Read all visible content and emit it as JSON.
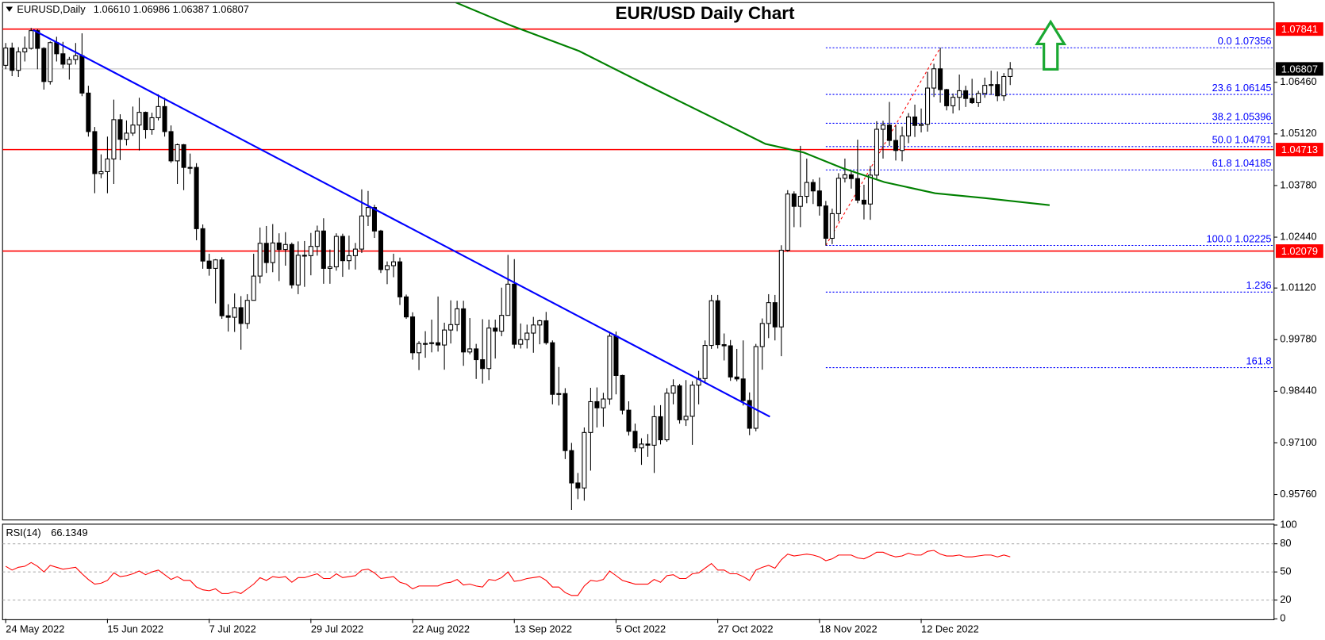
{
  "chart_data": {
    "type": "candlestick",
    "title": "EUR/USD Daily Chart",
    "symbol": "EURUSD,Daily",
    "quote": "1.06610 1.06986 1.06387 1.06807",
    "up_color": "#ffffff",
    "down_color": "#000000",
    "candles": [
      [
        1.069,
        1.0748,
        1.068,
        1.0735
      ],
      [
        1.0735,
        1.0749,
        1.0662,
        1.0677
      ],
      [
        1.0677,
        1.0737,
        1.066,
        1.0725
      ],
      [
        1.0725,
        1.0765,
        1.07,
        1.0734
      ],
      [
        1.0734,
        1.0787,
        1.0731,
        1.078
      ],
      [
        1.078,
        1.0784,
        1.068,
        1.0734
      ],
      [
        1.0734,
        1.0737,
        1.0627,
        1.0648
      ],
      [
        1.0648,
        1.0752,
        1.064,
        1.0749
      ],
      [
        1.0749,
        1.0764,
        1.07,
        1.072
      ],
      [
        1.072,
        1.0751,
        1.0682,
        1.0693
      ],
      [
        1.0693,
        1.0712,
        1.0653,
        1.0705
      ],
      [
        1.0705,
        1.0748,
        1.0692,
        1.0715
      ],
      [
        1.0715,
        1.0773,
        1.061,
        1.0618
      ],
      [
        1.0618,
        1.0637,
        1.0505,
        1.0518
      ],
      [
        1.0518,
        1.053,
        1.0358,
        1.0409
      ],
      [
        1.0409,
        1.0459,
        1.0397,
        1.0414
      ],
      [
        1.0414,
        1.0505,
        1.0358,
        1.0447
      ],
      [
        1.0447,
        1.0601,
        1.0382,
        1.0549
      ],
      [
        1.0549,
        1.0563,
        1.0444,
        1.0498
      ],
      [
        1.0498,
        1.0547,
        1.0482,
        1.0514
      ],
      [
        1.0514,
        1.0583,
        1.0507,
        1.0535
      ],
      [
        1.0535,
        1.0606,
        1.0469,
        1.0568
      ],
      [
        1.0568,
        1.057,
        1.05,
        1.0523
      ],
      [
        1.0523,
        1.0567,
        1.051,
        1.0554
      ],
      [
        1.0554,
        1.0615,
        1.0547,
        1.0583
      ],
      [
        1.0583,
        1.0606,
        1.0505,
        1.0518
      ],
      [
        1.0518,
        1.0534,
        1.0437,
        1.0442
      ],
      [
        1.0442,
        1.0487,
        1.0382,
        1.0484
      ],
      [
        1.0484,
        1.0486,
        1.0366,
        1.0425
      ],
      [
        1.0425,
        1.0461,
        1.0408,
        1.0425
      ],
      [
        1.0425,
        1.0436,
        1.0236,
        1.0266
      ],
      [
        1.0266,
        1.0277,
        1.0162,
        1.0182
      ],
      [
        1.0182,
        1.0201,
        1.0144,
        1.0163
      ],
      [
        1.0163,
        1.0187,
        1.0072,
        1.0185
      ],
      [
        1.0185,
        1.0192,
        1.0032,
        1.004
      ],
      [
        1.004,
        1.007,
        0.9999,
        1.0036
      ],
      [
        1.0036,
        1.0098,
        0.9998,
        1.0061
      ],
      [
        1.0061,
        1.0091,
        0.9952,
        1.002
      ],
      [
        1.002,
        1.0096,
        1.0006,
        1.008
      ],
      [
        1.008,
        1.0201,
        1.008,
        1.0143
      ],
      [
        1.0143,
        1.0269,
        1.0124,
        1.0228
      ],
      [
        1.0228,
        1.0273,
        1.0151,
        1.0178
      ],
      [
        1.0178,
        1.0278,
        1.0153,
        1.0229
      ],
      [
        1.0229,
        1.0254,
        1.013,
        1.0212
      ],
      [
        1.0212,
        1.0257,
        1.017,
        1.0225
      ],
      [
        1.0225,
        1.023,
        1.0111,
        1.012
      ],
      [
        1.012,
        1.0233,
        1.0096,
        1.0197
      ],
      [
        1.0197,
        1.0234,
        1.0115,
        1.0196
      ],
      [
        1.0196,
        1.0255,
        1.0145,
        1.022
      ],
      [
        1.022,
        1.0274,
        1.0196,
        1.026
      ],
      [
        1.026,
        1.0293,
        1.0123,
        1.0163
      ],
      [
        1.0163,
        1.0212,
        1.0123,
        1.0167
      ],
      [
        1.0167,
        1.0254,
        1.0157,
        1.0246
      ],
      [
        1.0246,
        1.0253,
        1.0141,
        1.0183
      ],
      [
        1.0183,
        1.0248,
        1.016,
        1.0196
      ],
      [
        1.0196,
        1.0229,
        1.016,
        1.0213
      ],
      [
        1.0213,
        1.0368,
        1.0203,
        1.0299
      ],
      [
        1.0299,
        1.0364,
        1.0273,
        1.0321
      ],
      [
        1.0321,
        1.0328,
        1.0242,
        1.026
      ],
      [
        1.026,
        1.0263,
        1.0151,
        1.016
      ],
      [
        1.016,
        1.0181,
        1.0122,
        1.017
      ],
      [
        1.017,
        1.0201,
        1.014,
        1.018
      ],
      [
        1.018,
        1.0191,
        1.0068,
        1.0089
      ],
      [
        1.0089,
        1.0095,
        1.0032,
        1.0037
      ],
      [
        1.0037,
        1.0049,
        0.9926,
        0.9944
      ],
      [
        0.9944,
        0.9974,
        0.9899,
        0.9968
      ],
      [
        0.9968,
        1.0,
        0.9931,
        0.9968
      ],
      [
        0.9968,
        1.003,
        0.9945,
        0.997
      ],
      [
        0.997,
        1.009,
        0.9947,
        0.9964
      ],
      [
        0.9964,
        1.0022,
        0.99,
        1.0003
      ],
      [
        1.0003,
        1.008,
        0.9968,
        1.0017
      ],
      [
        1.0017,
        1.0079,
        1.0,
        1.0058
      ],
      [
        1.0058,
        1.0079,
        0.991,
        0.9946
      ],
      [
        0.9946,
        1.0034,
        0.994,
        0.9954
      ],
      [
        0.9954,
        0.9967,
        0.9876,
        0.9926
      ],
      [
        0.9926,
        1.0031,
        0.9864,
        0.9903
      ],
      [
        0.9903,
        1.003,
        0.9873,
        1.0008
      ],
      [
        1.0008,
        1.003,
        0.9929,
        1.0
      ],
      [
        1.0,
        1.0113,
        0.9987,
        1.0041
      ],
      [
        1.0041,
        1.0198,
        1.0042,
        1.0122
      ],
      [
        1.0122,
        1.0187,
        0.9955,
        0.9966
      ],
      [
        0.9966,
        1.002,
        0.9955,
        0.9978
      ],
      [
        0.9978,
        1.0017,
        0.9955,
        0.9995
      ],
      [
        0.9995,
        1.0037,
        0.9944,
        1.0016
      ],
      [
        1.0016,
        1.003,
        0.9966,
        1.0027
      ],
      [
        1.0027,
        1.005,
        0.9965,
        0.997
      ],
      [
        0.997,
        0.9976,
        0.981,
        0.9836
      ],
      [
        0.9836,
        0.9907,
        0.9807,
        0.9838
      ],
      [
        0.9838,
        0.9852,
        0.9668,
        0.969
      ],
      [
        0.969,
        0.971,
        0.9536,
        0.9606
      ],
      [
        0.9606,
        0.9632,
        0.9564,
        0.9593
      ],
      [
        0.9593,
        0.975,
        0.956,
        0.9737
      ],
      [
        0.9737,
        0.9853,
        0.9638,
        0.9817
      ],
      [
        0.9817,
        0.9854,
        0.975,
        0.9801
      ],
      [
        0.9801,
        0.984,
        0.9752,
        0.9824
      ],
      [
        0.9824,
        0.9999,
        0.9809,
        0.9987
      ],
      [
        0.9987,
        0.9999,
        0.9836,
        0.9885
      ],
      [
        0.9885,
        0.9887,
        0.9784,
        0.9795
      ],
      [
        0.9795,
        0.9818,
        0.9729,
        0.974
      ],
      [
        0.974,
        0.976,
        0.9686,
        0.9697
      ],
      [
        0.9697,
        0.9722,
        0.9653,
        0.9707
      ],
      [
        0.9707,
        0.9733,
        0.9674,
        0.9704
      ],
      [
        0.9704,
        0.9807,
        0.9632,
        0.9778
      ],
      [
        0.9778,
        0.9808,
        0.9706,
        0.9718
      ],
      [
        0.9718,
        0.9852,
        0.9713,
        0.9839
      ],
      [
        0.9839,
        0.9875,
        0.981,
        0.9858
      ],
      [
        0.9858,
        0.9863,
        0.976,
        0.977
      ],
      [
        0.977,
        0.9873,
        0.9754,
        0.9779
      ],
      [
        0.9779,
        0.987,
        0.9705,
        0.986
      ],
      [
        0.986,
        0.9897,
        0.981,
        0.9877
      ],
      [
        0.9877,
        0.9976,
        0.9864,
        0.9963
      ],
      [
        0.9963,
        1.0094,
        0.9954,
        1.0079
      ],
      [
        1.0079,
        1.0094,
        0.9955,
        0.9965
      ],
      [
        0.9965,
        0.9994,
        0.9924,
        0.9962
      ],
      [
        0.9962,
        0.9977,
        0.9871,
        0.9881
      ],
      [
        0.9881,
        0.9954,
        0.987,
        0.9876
      ],
      [
        0.9876,
        0.9976,
        0.9807,
        0.982
      ],
      [
        0.982,
        0.9841,
        0.973,
        0.9748
      ],
      [
        0.9748,
        0.9967,
        0.974,
        0.996
      ],
      [
        0.996,
        1.0033,
        0.99,
        1.002
      ],
      [
        1.002,
        1.0096,
        0.9982,
        1.0074
      ],
      [
        1.0074,
        1.0094,
        0.9976,
        1.0011
      ],
      [
        1.0011,
        1.0223,
        0.9935,
        1.021
      ],
      [
        1.021,
        1.0366,
        1.0206,
        1.0356
      ],
      [
        1.0356,
        1.0363,
        1.027,
        1.0324
      ],
      [
        1.0324,
        1.0481,
        1.027,
        1.035
      ],
      [
        1.035,
        1.0448,
        1.0332,
        1.0386
      ],
      [
        1.0386,
        1.0394,
        1.033,
        1.0364
      ],
      [
        1.0364,
        1.0399,
        1.03,
        1.0325
      ],
      [
        1.0325,
        1.0338,
        1.0222,
        1.0241
      ],
      [
        1.0241,
        1.0318,
        1.0226,
        1.0305
      ],
      [
        1.0305,
        1.041,
        1.0285,
        1.0397
      ],
      [
        1.0397,
        1.0448,
        1.0386,
        1.0406
      ],
      [
        1.0406,
        1.0415,
        1.037,
        1.0396
      ],
      [
        1.0396,
        1.0497,
        1.0332,
        1.034
      ],
      [
        1.034,
        1.038,
        1.029,
        1.033
      ],
      [
        1.033,
        1.0429,
        1.0289,
        1.0405
      ],
      [
        1.0405,
        1.0545,
        1.0394,
        1.0524
      ],
      [
        1.0524,
        1.0546,
        1.0448,
        1.0535
      ],
      [
        1.0535,
        1.0595,
        1.0481,
        1.0495
      ],
      [
        1.0495,
        1.0534,
        1.0443,
        1.0469
      ],
      [
        1.0469,
        1.0531,
        1.0441,
        1.0507
      ],
      [
        1.0507,
        1.0566,
        1.0488,
        1.0556
      ],
      [
        1.0556,
        1.0588,
        1.0504,
        1.0534
      ],
      [
        1.0534,
        1.0578,
        1.0516,
        1.0537
      ],
      [
        1.0537,
        1.0673,
        1.0518,
        1.0631
      ],
      [
        1.0631,
        1.0694,
        1.0608,
        1.0681
      ],
      [
        1.0681,
        1.0736,
        1.0593,
        1.0627
      ],
      [
        1.0627,
        1.0629,
        1.0573,
        1.0585
      ],
      [
        1.0585,
        1.0617,
        1.0565,
        1.0607
      ],
      [
        1.0607,
        1.0666,
        1.0573,
        1.0624
      ],
      [
        1.0624,
        1.0637,
        1.0582,
        1.0604
      ],
      [
        1.0604,
        1.0655,
        1.059,
        1.0593
      ],
      [
        1.0593,
        1.0624,
        1.0582,
        1.0617
      ],
      [
        1.0617,
        1.0658,
        1.0606,
        1.0638
      ],
      [
        1.0638,
        1.0676,
        1.0613,
        1.064
      ],
      [
        1.064,
        1.0674,
        1.0597,
        1.0611
      ],
      [
        1.0611,
        1.067,
        1.0598,
        1.0661
      ],
      [
        1.0661,
        1.06986,
        1.06387,
        1.06807
      ]
    ],
    "xlim": [
      -0.5,
      199.5
    ],
    "xticks": [
      {
        "value": 0,
        "label": "24 May 2022"
      },
      {
        "value": 16,
        "label": "15 Jun 2022"
      },
      {
        "value": 32,
        "label": "7 Jul 2022"
      },
      {
        "value": 48,
        "label": "29 Jul 2022"
      },
      {
        "value": 64,
        "label": "22 Aug 2022"
      },
      {
        "value": 80,
        "label": "13 Sep 2022"
      },
      {
        "value": 96,
        "label": "5 Oct 2022"
      },
      {
        "value": 112,
        "label": "27 Oct 2022"
      },
      {
        "value": 128,
        "label": "18 Nov 2022"
      },
      {
        "value": 144,
        "label": "12 Dec 2022"
      }
    ],
    "ylim": [
      0.951,
      1.0853
    ],
    "yticks": [
      {
        "value": 1.0646,
        "label": "1.06460"
      },
      {
        "value": 1.0512,
        "label": "1.05120"
      },
      {
        "value": 1.0378,
        "label": "1.03780"
      },
      {
        "value": 1.0244,
        "label": "1.02440"
      },
      {
        "value": 1.0112,
        "label": "1.01120"
      },
      {
        "value": 0.9978,
        "label": "0.99780"
      },
      {
        "value": 0.9844,
        "label": "0.98440"
      },
      {
        "value": 0.971,
        "label": "0.97100"
      },
      {
        "value": 0.9576,
        "label": "0.95760"
      }
    ],
    "levels": [
      {
        "value": 1.07841,
        "color": "#ff0000",
        "box": "#ff0000"
      },
      {
        "value": 1.06807,
        "color": "#c0c0c0",
        "box": "#000000"
      },
      {
        "value": 1.04713,
        "color": "#ff0000",
        "box": "#ff0000"
      },
      {
        "value": 1.02079,
        "color": "#ff0000",
        "box": "#ff0000"
      }
    ],
    "trendline": {
      "color": "#0000ff",
      "x": [
        4.3,
        120.2
      ],
      "values": [
        1.0782,
        0.9778
      ]
    },
    "moving_average": {
      "color": "#008000",
      "x": [
        70.8,
        79.5,
        90.2,
        100.8,
        111.5,
        119.5,
        125.5,
        131.5,
        138.2,
        146.2,
        154.2,
        164.2
      ],
      "values": [
        1.0853,
        1.0793,
        1.0727,
        1.0639,
        1.0552,
        1.0486,
        1.0464,
        1.0424,
        1.0387,
        1.0358,
        1.0345,
        1.0327
      ]
    },
    "fib": {
      "color": "#0000ff",
      "line_color": "#ff0000",
      "x": [
        129,
        147
      ],
      "values": [
        1.02225,
        1.07356
      ],
      "levels": [
        {
          "label": "0.0 1.07356",
          "value": 1.07356
        },
        {
          "label": "23.6 1.06145",
          "value": 1.06145
        },
        {
          "label": "38.2 1.05396",
          "value": 1.05396
        },
        {
          "label": "50.0 1.04791",
          "value": 1.04791
        },
        {
          "label": "61.8 1.04185",
          "value": 1.04185
        },
        {
          "label": "100.0 1.02225",
          "value": 1.02225
        },
        {
          "label": "1.236",
          "value": 1.01014
        },
        {
          "label": "161.8",
          "value": 0.99054
        }
      ]
    },
    "rsi": {
      "label": "RSI(14)",
      "color": "#ff0000",
      "ylim": [
        0,
        100
      ],
      "yticks": [
        100,
        80,
        50,
        20,
        0
      ],
      "levels": [
        80,
        50,
        20
      ],
      "values": [
        56,
        52,
        55,
        56,
        60,
        56,
        50,
        57,
        55,
        53,
        54,
        55,
        48,
        42,
        37,
        38,
        41,
        49,
        45,
        46,
        48,
        51,
        47,
        50,
        52,
        47,
        42,
        45,
        41,
        41,
        34,
        31,
        30,
        32,
        27,
        27,
        29,
        27,
        32,
        37,
        44,
        41,
        45,
        44,
        45,
        39,
        44,
        44,
        46,
        48,
        43,
        43,
        48,
        44,
        45,
        46,
        52,
        53,
        49,
        43,
        44,
        45,
        39,
        37,
        32,
        35,
        35,
        35,
        35,
        38,
        39,
        42,
        36,
        37,
        35,
        34,
        42,
        41,
        44,
        50,
        40,
        41,
        43,
        44,
        45,
        41,
        34,
        34,
        28,
        25,
        25,
        35,
        41,
        40,
        42,
        51,
        46,
        41,
        39,
        37,
        37,
        37,
        42,
        39,
        46,
        47,
        43,
        43,
        48,
        49,
        54,
        59,
        52,
        52,
        48,
        48,
        45,
        41,
        52,
        55,
        57,
        54,
        63,
        69,
        67,
        68,
        69,
        68,
        66,
        62,
        64,
        68,
        68,
        68,
        65,
        64,
        67,
        71,
        71,
        68,
        66,
        67,
        70,
        68,
        68,
        72,
        73,
        69,
        67,
        67,
        68,
        66,
        66,
        67,
        68,
        68,
        66,
        68,
        66.1349
      ]
    }
  }
}
